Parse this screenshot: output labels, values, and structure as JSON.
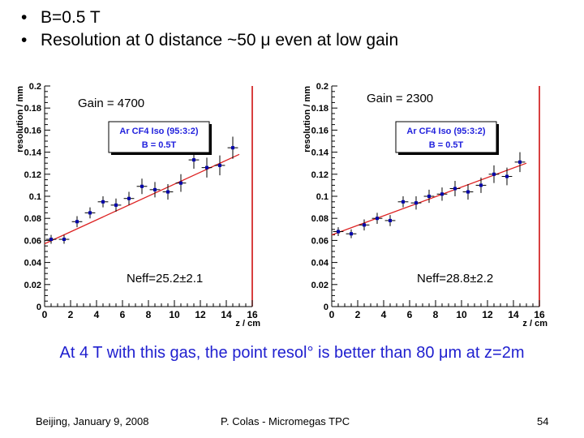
{
  "bullets": [
    "B=0.5 T",
    "Resolution at 0 distance ~50 μ even at low gain"
  ],
  "bullet_glyph": "•",
  "note": "At 4 T with this gas, the point resol° is better than 80 μm at z=2m",
  "footer": {
    "left": "Beijing, January 9, 2008",
    "center": "P. Colas - Micromegas TPC",
    "right": "54"
  },
  "colors": {
    "markers": "#0000aa",
    "fit": "#dd2222",
    "legend_text": "#2222dd",
    "note_text": "#1f1fcf"
  },
  "chart_data": [
    {
      "type": "scatter",
      "xlabel": "z / cm",
      "ylabel": "resolution / mm",
      "xlim": [
        0,
        16
      ],
      "ylim": [
        0,
        0.2
      ],
      "x_ticks": [
        "0",
        "2",
        "4",
        "6",
        "8",
        "10",
        "12",
        "14",
        "16"
      ],
      "y_ticks": [
        "0",
        "0.02",
        "0.04",
        "0.06",
        "0.08",
        "0.1",
        "0.12",
        "0.14",
        "0.16",
        "0.18",
        "0.2"
      ],
      "gain_label": "Gain = 4700",
      "legend": [
        "Ar CF4 Iso (95:3:2)",
        "B = 0.5T"
      ],
      "legend_placement": "top-center",
      "neff_label": "Neff=25.2±2.1",
      "points": [
        {
          "x": 0.5,
          "y": 0.061,
          "ex": 0.4,
          "ey": 0.004
        },
        {
          "x": 1.5,
          "y": 0.061,
          "ex": 0.4,
          "ey": 0.004
        },
        {
          "x": 2.5,
          "y": 0.077,
          "ex": 0.4,
          "ey": 0.005
        },
        {
          "x": 3.5,
          "y": 0.085,
          "ex": 0.4,
          "ey": 0.005
        },
        {
          "x": 4.5,
          "y": 0.095,
          "ex": 0.4,
          "ey": 0.005
        },
        {
          "x": 5.5,
          "y": 0.092,
          "ex": 0.4,
          "ey": 0.006
        },
        {
          "x": 6.5,
          "y": 0.098,
          "ex": 0.4,
          "ey": 0.006
        },
        {
          "x": 7.5,
          "y": 0.109,
          "ex": 0.4,
          "ey": 0.007
        },
        {
          "x": 8.5,
          "y": 0.106,
          "ex": 0.4,
          "ey": 0.007
        },
        {
          "x": 9.5,
          "y": 0.104,
          "ex": 0.4,
          "ey": 0.007
        },
        {
          "x": 10.5,
          "y": 0.112,
          "ex": 0.4,
          "ey": 0.008
        },
        {
          "x": 11.5,
          "y": 0.133,
          "ex": 0.4,
          "ey": 0.008
        },
        {
          "x": 12.5,
          "y": 0.126,
          "ex": 0.4,
          "ey": 0.009
        },
        {
          "x": 13.5,
          "y": 0.128,
          "ex": 0.4,
          "ey": 0.009
        },
        {
          "x": 14.5,
          "y": 0.144,
          "ex": 0.4,
          "ey": 0.01
        }
      ],
      "fit_line": {
        "x": [
          0,
          15
        ],
        "y": [
          0.057,
          0.138
        ]
      }
    },
    {
      "type": "scatter",
      "xlabel": "z / cm",
      "ylabel": "resolution / mm",
      "xlim": [
        0,
        16
      ],
      "ylim": [
        0,
        0.2
      ],
      "x_ticks": [
        "0",
        "2",
        "4",
        "6",
        "8",
        "10",
        "12",
        "14",
        "16"
      ],
      "y_ticks": [
        "0",
        "0.02",
        "0.04",
        "0.06",
        "0.08",
        "0.1",
        "0.12",
        "0.14",
        "0.16",
        "0.18",
        "0.2"
      ],
      "gain_label": "Gain = 2300",
      "legend": [
        "Ar CF4 Iso (95:3:2)",
        "B = 0.5T"
      ],
      "legend_placement": "top-center",
      "neff_label": "Neff=28.8±2.2",
      "points": [
        {
          "x": 0.5,
          "y": 0.068,
          "ex": 0.4,
          "ey": 0.004
        },
        {
          "x": 1.5,
          "y": 0.066,
          "ex": 0.4,
          "ey": 0.004
        },
        {
          "x": 2.5,
          "y": 0.074,
          "ex": 0.4,
          "ey": 0.005
        },
        {
          "x": 3.5,
          "y": 0.08,
          "ex": 0.4,
          "ey": 0.005
        },
        {
          "x": 4.5,
          "y": 0.078,
          "ex": 0.4,
          "ey": 0.005
        },
        {
          "x": 5.5,
          "y": 0.095,
          "ex": 0.4,
          "ey": 0.005
        },
        {
          "x": 6.5,
          "y": 0.094,
          "ex": 0.4,
          "ey": 0.006
        },
        {
          "x": 7.5,
          "y": 0.1,
          "ex": 0.4,
          "ey": 0.006
        },
        {
          "x": 8.5,
          "y": 0.102,
          "ex": 0.4,
          "ey": 0.006
        },
        {
          "x": 9.5,
          "y": 0.107,
          "ex": 0.4,
          "ey": 0.007
        },
        {
          "x": 10.5,
          "y": 0.104,
          "ex": 0.4,
          "ey": 0.007
        },
        {
          "x": 11.5,
          "y": 0.11,
          "ex": 0.4,
          "ey": 0.007
        },
        {
          "x": 12.5,
          "y": 0.12,
          "ex": 0.4,
          "ey": 0.008
        },
        {
          "x": 13.5,
          "y": 0.118,
          "ex": 0.4,
          "ey": 0.008
        },
        {
          "x": 14.5,
          "y": 0.131,
          "ex": 0.4,
          "ey": 0.009
        }
      ],
      "fit_line": {
        "x": [
          0,
          15
        ],
        "y": [
          0.065,
          0.13
        ]
      }
    }
  ]
}
